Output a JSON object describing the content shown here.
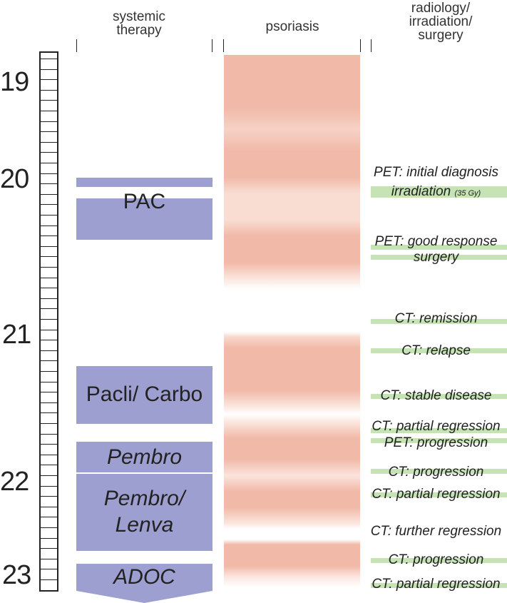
{
  "headers": {
    "systemic": "systemic therapy",
    "psoriasis": "psoriasis",
    "radiology": "radiology/ irradiation/ surgery"
  },
  "years": [
    "19",
    "20",
    "21",
    "22",
    "23"
  ],
  "therapies": {
    "pac": "PAC",
    "pacli_carbo": "Pacli/ Carbo",
    "pembro": "Pembro",
    "pembro_lenva": "Pembro/ Lenva",
    "adoc": "ADOC"
  },
  "events": {
    "pet_initial": "PET: initial diagnosis",
    "irradiation": "irradiation",
    "irradiation_dose": "(35 Gy)",
    "pet_good": "PET: good response",
    "surgery": "surgery",
    "ct_remission": "CT: remission",
    "ct_relapse": "CT: relapse",
    "ct_stable": "CT: stable disease",
    "ct_partial_1": "CT: partial regression",
    "pet_progression": "PET: progression",
    "ct_progression_1": "CT: progression",
    "ct_partial_2": "CT: partial regression",
    "ct_further": "CT: further regression",
    "ct_progression_2": "CT: progression",
    "ct_partial_3": "CT: partial regression"
  },
  "colors": {
    "therapy": "#9d9fd0",
    "psoriasis": "#f1b9a8",
    "event_bar": "#c5e3b4"
  }
}
